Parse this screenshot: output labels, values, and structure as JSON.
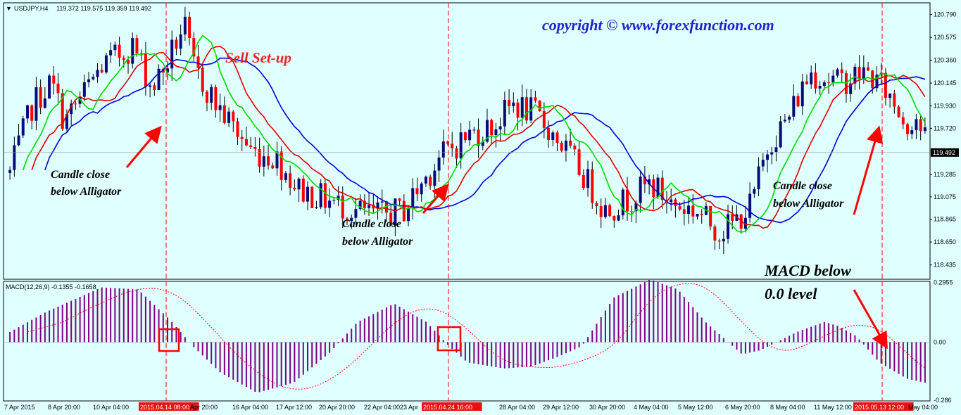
{
  "header": {
    "symbol": "USDJPY,H4",
    "ohlc": "119.372 119.575 119.359 119.492",
    "copyright": "copyright  ©  www.forexfunction.com",
    "setup_title": "Sell Set-up"
  },
  "annotations": {
    "candle_close_line1": "Candle close",
    "candle_close_line2": "below Alligator",
    "macd_line1": "MACD below",
    "macd_line2": "0.0 level"
  },
  "macd": {
    "label": "MACD(12,26,9) -0.1355 -0.1658"
  },
  "colors": {
    "background": "#e0ffff",
    "bull": "#0a0a7a",
    "bear": "#ff0000",
    "jaw": "#0000dd",
    "teeth": "#dd0000",
    "lips": "#00dd00",
    "histogram": "#800080",
    "signal": "#ff0000",
    "marker": "#ff0000",
    "copyright": "#2222cc",
    "setup": "#ee2222"
  },
  "chart_data": [
    {
      "type": "candlestick",
      "symbol": "USDJPY",
      "timeframe": "H4",
      "current_price": 119.492,
      "ylim": [
        118.3,
        120.9
      ],
      "y_ticks": [
        "120.790",
        "120.575",
        "120.360",
        "120.145",
        "119.930",
        "119.720",
        "119.492",
        "119.285",
        "119.075",
        "118.865",
        "118.650",
        "118.435"
      ],
      "x_ticks": [
        "7 Apr 2015",
        "8 Apr 20:00",
        "10 Apr 04:00",
        "2015.04.14 08:00",
        "Apr 20:00",
        "16 Apr 04:00",
        "17 Apr 12:00",
        "20 Apr 20:00",
        "22 Apr 04:00",
        "23 Apr",
        "2015.04.24 16:00",
        "28 Apr 04:00",
        "29 Apr 12:00",
        "30 Apr 20:00",
        "4 May 04:00",
        "5 May 12:00",
        "6 May 20:00",
        "8 May 04:00",
        "11 May 12:00",
        "2015.05.13 12:00",
        "May 04:00"
      ],
      "highlighted_dates": [
        "2015.04.14 08:00",
        "2015.04.24 16:00",
        "2015.05.13 12:00"
      ],
      "price_path": [
        [
          0,
          119.3
        ],
        [
          0.025,
          119.95
        ],
        [
          0.045,
          120.15
        ],
        [
          0.06,
          119.78
        ],
        [
          0.1,
          120.3
        ],
        [
          0.135,
          120.5
        ],
        [
          0.155,
          120.1
        ],
        [
          0.17,
          120.3
        ],
        [
          0.19,
          120.7
        ],
        [
          0.2,
          120.3
        ],
        [
          0.225,
          119.95
        ],
        [
          0.245,
          119.72
        ],
        [
          0.265,
          119.5
        ],
        [
          0.29,
          119.45
        ],
        [
          0.315,
          119.15
        ],
        [
          0.345,
          119.05
        ],
        [
          0.375,
          118.95
        ],
        [
          0.405,
          118.9
        ],
        [
          0.43,
          118.95
        ],
        [
          0.45,
          119.2
        ],
        [
          0.47,
          119.45
        ],
        [
          0.5,
          119.65
        ],
        [
          0.53,
          119.75
        ],
        [
          0.55,
          119.95
        ],
        [
          0.575,
          119.85
        ],
        [
          0.6,
          119.6
        ],
        [
          0.625,
          119.3
        ],
        [
          0.65,
          118.95
        ],
        [
          0.675,
          119.05
        ],
        [
          0.7,
          119.2
        ],
        [
          0.725,
          119.0
        ],
        [
          0.75,
          118.95
        ],
        [
          0.775,
          118.75
        ],
        [
          0.79,
          118.82
        ],
        [
          0.81,
          119.0
        ],
        [
          0.83,
          119.6
        ],
        [
          0.85,
          119.8
        ],
        [
          0.86,
          120.0
        ],
        [
          0.875,
          120.25
        ],
        [
          0.905,
          120.15
        ],
        [
          0.935,
          120.25
        ],
        [
          0.955,
          120.1
        ],
        [
          0.97,
          119.9
        ],
        [
          0.98,
          119.75
        ],
        [
          0.99,
          119.85
        ],
        [
          1.0,
          119.6
        ]
      ],
      "alligator": {
        "jaw_color": "blue",
        "teeth_color": "red",
        "lips_color": "lime"
      }
    },
    {
      "type": "bar",
      "indicator": "MACD",
      "params": "12,26,9",
      "main": -0.1355,
      "signal": -0.1658,
      "ylim": [
        -0.29,
        0.3
      ],
      "y_ticks": [
        "0.2955",
        "0.00",
        "-0.286"
      ],
      "hist_path": [
        [
          0,
          0.05
        ],
        [
          0.04,
          0.15
        ],
        [
          0.1,
          0.27
        ],
        [
          0.14,
          0.26
        ],
        [
          0.175,
          0.11
        ],
        [
          0.2,
          -0.02
        ],
        [
          0.23,
          -0.15
        ],
        [
          0.27,
          -0.25
        ],
        [
          0.31,
          -0.2
        ],
        [
          0.35,
          -0.05
        ],
        [
          0.38,
          0.1
        ],
        [
          0.42,
          0.19
        ],
        [
          0.455,
          0.1
        ],
        [
          0.48,
          -0.02
        ],
        [
          0.5,
          -0.1
        ],
        [
          0.54,
          -0.13
        ],
        [
          0.57,
          -0.12
        ],
        [
          0.6,
          -0.07
        ],
        [
          0.625,
          -0.02
        ],
        [
          0.66,
          0.22
        ],
        [
          0.7,
          0.31
        ],
        [
          0.73,
          0.26
        ],
        [
          0.76,
          0.1
        ],
        [
          0.8,
          -0.06
        ],
        [
          0.82,
          -0.04
        ],
        [
          0.86,
          0.05
        ],
        [
          0.89,
          0.1
        ],
        [
          0.905,
          0.08
        ],
        [
          0.925,
          0.03
        ],
        [
          0.95,
          -0.1
        ],
        [
          0.98,
          -0.18
        ],
        [
          1.0,
          -0.2
        ]
      ]
    }
  ]
}
